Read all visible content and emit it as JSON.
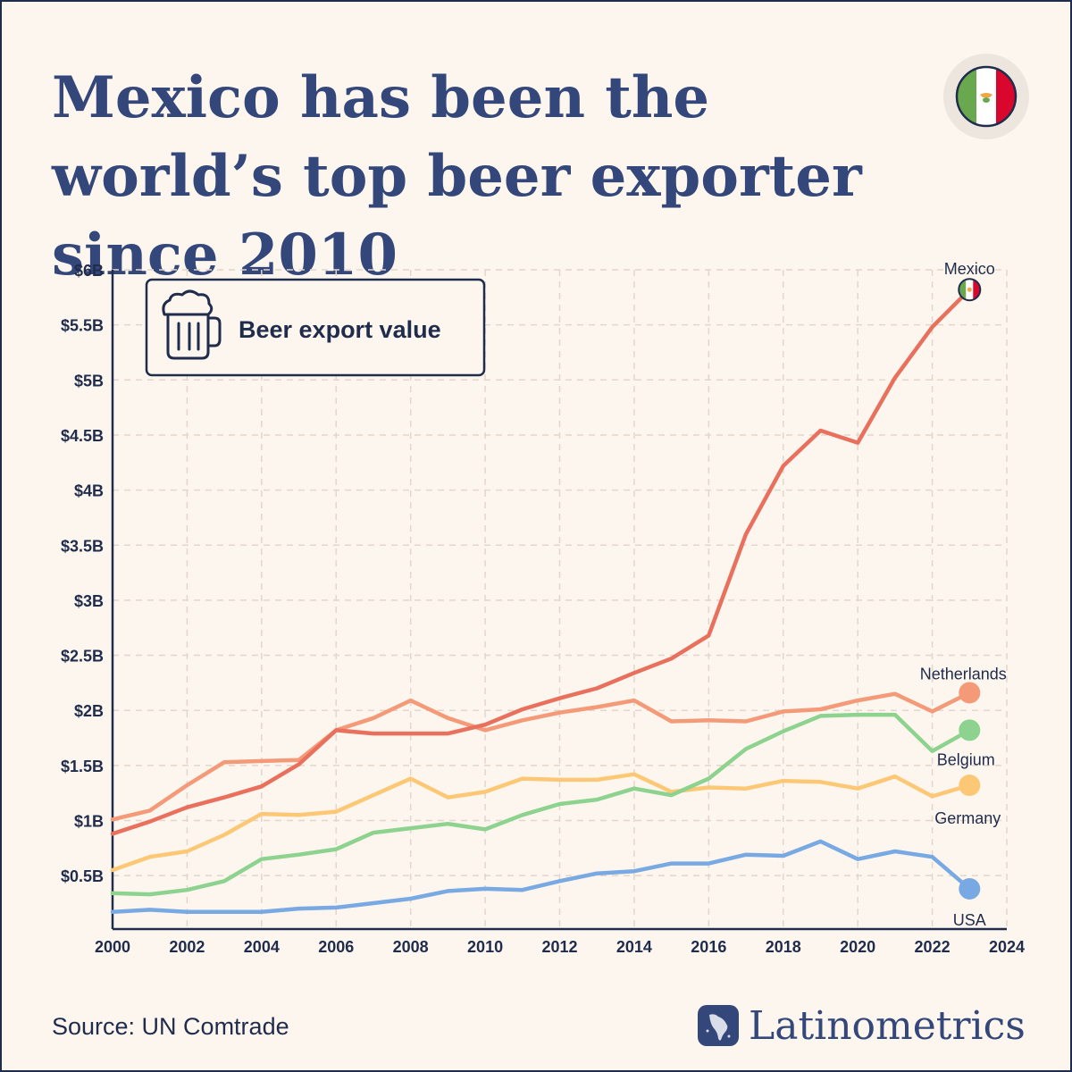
{
  "title": "Mexico has been the world’s top beer exporter since 2010",
  "legend_box": {
    "label": "Beer export value",
    "icon": "beer-mug-icon"
  },
  "source": "Source: UN Comtrade",
  "brand": {
    "name": "Latinometrics",
    "icon": "latam-map-logo-icon"
  },
  "flag_icon": "mexico-flag-icon",
  "colors": {
    "background": "#fdf6ee",
    "text": "#1f2c4c",
    "title": "#34477a",
    "mexico": "#e8705d",
    "netherlands": "#f59a78",
    "belgium": "#8dd38f",
    "germany": "#fdc876",
    "usa": "#78a9e3"
  },
  "chart_data": {
    "type": "line",
    "title": "Beer export value",
    "xlabel": "",
    "ylabel": "",
    "xlim": [
      2000,
      2024
    ],
    "ylim": [
      0,
      6
    ],
    "x_ticks": [
      2000,
      2002,
      2004,
      2006,
      2008,
      2010,
      2012,
      2014,
      2016,
      2018,
      2020,
      2022,
      2024
    ],
    "y_ticks": [
      0.5,
      1,
      1.5,
      2,
      2.5,
      3,
      3.5,
      4,
      4.5,
      5,
      5.5,
      6
    ],
    "y_tick_labels": [
      "$0.5B",
      "$1B",
      "$1.5B",
      "$2B",
      "$2.5B",
      "$3B",
      "$3.5B",
      "$4B",
      "$4.5B",
      "$5B",
      "$5.5B",
      "$6B"
    ],
    "grid": true,
    "legend": "end-labels",
    "x": [
      2000,
      2001,
      2002,
      2003,
      2004,
      2005,
      2006,
      2007,
      2008,
      2009,
      2010,
      2011,
      2012,
      2013,
      2014,
      2015,
      2016,
      2017,
      2018,
      2019,
      2020,
      2021,
      2022,
      2023
    ],
    "series": [
      {
        "name": "Mexico",
        "color": "#e8705d",
        "values": [
          0.88,
          0.99,
          1.12,
          1.21,
          1.31,
          1.51,
          1.82,
          1.79,
          1.79,
          1.79,
          1.87,
          2.01,
          2.11,
          2.2,
          2.34,
          2.47,
          2.68,
          3.6,
          4.22,
          4.54,
          4.43,
          5.02,
          5.48,
          5.82
        ]
      },
      {
        "name": "Netherlands",
        "color": "#f59a78",
        "values": [
          1.01,
          1.09,
          1.32,
          1.53,
          1.54,
          1.55,
          1.82,
          1.93,
          2.09,
          1.93,
          1.82,
          1.91,
          1.98,
          2.03,
          2.09,
          1.9,
          1.91,
          1.9,
          1.99,
          2.01,
          2.09,
          2.15,
          1.99,
          2.16
        ]
      },
      {
        "name": "Belgium",
        "color": "#8dd38f",
        "values": [
          0.34,
          0.33,
          0.37,
          0.45,
          0.65,
          0.69,
          0.74,
          0.89,
          0.93,
          0.97,
          0.92,
          1.05,
          1.15,
          1.19,
          1.29,
          1.23,
          1.38,
          1.65,
          1.81,
          1.95,
          1.96,
          1.96,
          1.63,
          1.82
        ]
      },
      {
        "name": "Germany",
        "color": "#fdc876",
        "values": [
          0.55,
          0.67,
          0.72,
          0.87,
          1.06,
          1.05,
          1.08,
          1.23,
          1.38,
          1.21,
          1.26,
          1.38,
          1.37,
          1.37,
          1.42,
          1.26,
          1.3,
          1.29,
          1.36,
          1.35,
          1.29,
          1.4,
          1.22,
          1.32
        ]
      },
      {
        "name": "USA",
        "color": "#78a9e3",
        "values": [
          0.17,
          0.19,
          0.17,
          0.17,
          0.17,
          0.2,
          0.21,
          0.25,
          0.29,
          0.36,
          0.38,
          0.37,
          0.45,
          0.52,
          0.54,
          0.61,
          0.61,
          0.69,
          0.68,
          0.81,
          0.65,
          0.72,
          0.67,
          0.38
        ]
      }
    ]
  }
}
